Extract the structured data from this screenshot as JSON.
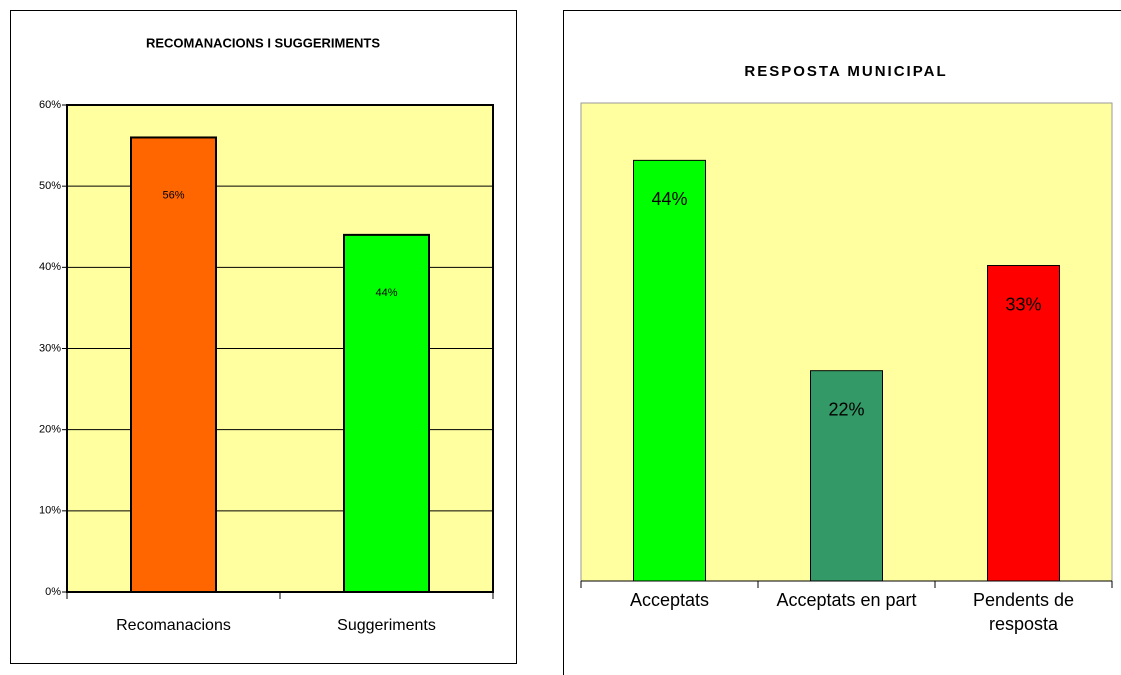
{
  "chart_data": [
    {
      "type": "bar",
      "title": "RECOMANACIONS I SUGGERIMENTS",
      "categories": [
        "Recomanacions",
        "Suggeriments"
      ],
      "values": [
        56,
        44
      ],
      "value_labels": [
        "56%",
        "44%"
      ],
      "colors": [
        "#ff6600",
        "#00ff00"
      ],
      "ylim": [
        0,
        60
      ],
      "yticks": [
        {
          "value": 0,
          "label": "0%"
        },
        {
          "value": 10,
          "label": "10%"
        },
        {
          "value": 20,
          "label": "20%"
        },
        {
          "value": 30,
          "label": "30%"
        },
        {
          "value": 40,
          "label": "40%"
        },
        {
          "value": 50,
          "label": "50%"
        },
        {
          "value": 60,
          "label": "60%"
        }
      ],
      "grid": true
    },
    {
      "type": "bar",
      "title": "RESPOSTA MUNICIPAL",
      "categories": [
        "Acceptats",
        "Acceptats en part",
        "Pendents de resposta"
      ],
      "values": [
        44,
        22,
        33
      ],
      "value_labels": [
        "44%",
        "22%",
        "33%"
      ],
      "colors": [
        "#00ff00",
        "#339966",
        "#ff0000"
      ],
      "ylim": [
        0,
        50
      ],
      "grid": false
    }
  ]
}
